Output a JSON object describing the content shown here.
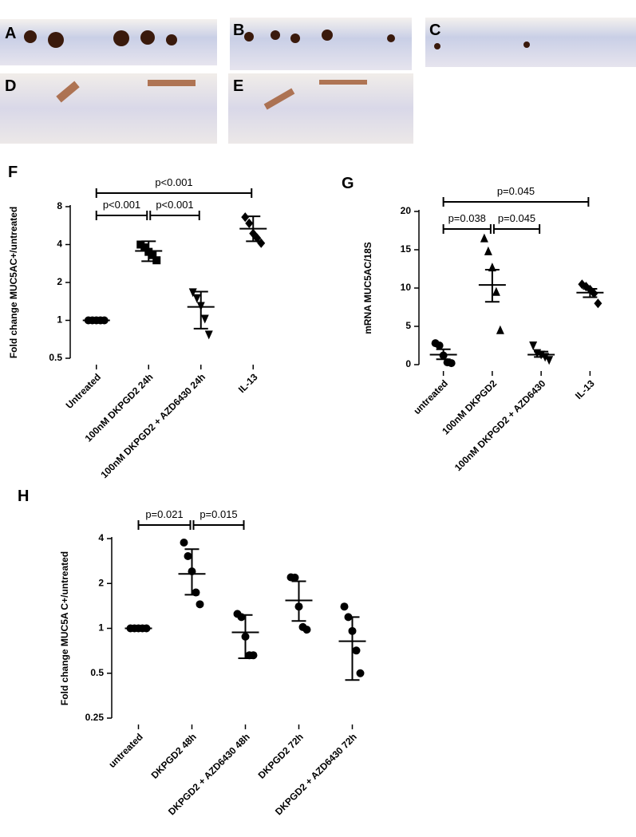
{
  "panels": [
    {
      "label": "A"
    },
    {
      "label": "B"
    },
    {
      "label": "C"
    },
    {
      "label": "D"
    },
    {
      "label": "E"
    }
  ],
  "chart_data": [
    {
      "type": "dotplot",
      "panel": "F",
      "ylabel": "Fold change MUC5AC+/untreated",
      "log_scale": true,
      "categories": [
        "Untreated",
        "100nM DKPGD2 24h",
        "100nM DKPGD2 + AZD6430 24h",
        "IL-13"
      ],
      "markers": [
        "circle",
        "square",
        "triangle-down",
        "diamond"
      ],
      "color": "#000000",
      "points": [
        [
          1,
          1,
          1,
          1,
          1
        ],
        [
          4.0,
          3.8,
          3.5,
          3.3,
          3.0
        ],
        [
          1.67,
          1.5,
          1.3,
          1.03,
          0.77
        ],
        [
          6.6,
          5.9,
          4.9,
          4.5,
          4.1
        ]
      ],
      "mean": [
        1,
        3.56,
        1.28,
        5.35
      ],
      "lower": [
        1,
        2.95,
        0.86,
        4.25
      ],
      "upper": [
        1,
        4.25,
        1.69,
        6.7
      ],
      "ylim": [
        0.5,
        8
      ],
      "yticks": [
        0.5,
        1,
        2,
        4,
        8
      ],
      "comparisons": [
        {
          "from": 0,
          "to": 3,
          "label": "p<0.001"
        },
        {
          "from": 0,
          "to": 1,
          "label": "p<0.001"
        },
        {
          "from": 1,
          "to": 2,
          "label": "p<0.001"
        }
      ]
    },
    {
      "type": "dotplot",
      "panel": "G",
      "ylabel": "mRNA MUC5AC/18S",
      "log_scale": false,
      "categories": [
        "untreated",
        "100nM DKPGD2",
        "100nM DKPGD2 + AZD6430",
        "IL-13"
      ],
      "markers": [
        "circle",
        "triangle-up",
        "triangle-down",
        "diamond"
      ],
      "color": "#000000",
      "points": [
        [
          2.8,
          2.5,
          1.2,
          0.3,
          0.2
        ],
        [
          16.5,
          14.8,
          12.7,
          9.5,
          4.5
        ],
        [
          2.5,
          1.5,
          1.3,
          1.0,
          0.6
        ],
        [
          10.5,
          10.2,
          9.8,
          9.3,
          8.0
        ]
      ],
      "mean": [
        1.3,
        10.4,
        1.3,
        9.4
      ],
      "lower": [
        0.7,
        8.2,
        1.0,
        8.8
      ],
      "upper": [
        2.0,
        12.4,
        1.7,
        9.9
      ],
      "ylim": [
        0,
        20
      ],
      "yticks": [
        0,
        5,
        10,
        15,
        20
      ],
      "comparisons": [
        {
          "from": 0,
          "to": 3,
          "label": "p=0.045"
        },
        {
          "from": 0,
          "to": 1,
          "label": "p=0.038"
        },
        {
          "from": 1,
          "to": 2,
          "label": "p=0.045"
        }
      ]
    },
    {
      "type": "dotplot",
      "panel": "H",
      "ylabel": "Fold change MUC5A C+/untreated",
      "log_scale": true,
      "categories": [
        "untreated",
        "DKPGD2 48h",
        "DKPGD2 + AZD6430 48h",
        "DKPGD2 72h",
        "DKPGD2 + AZD6430 72h"
      ],
      "markers": [
        "circle",
        "circle",
        "circle",
        "circle",
        "circle"
      ],
      "color": "#000000",
      "points": [
        [
          1,
          1,
          1,
          1,
          1
        ],
        [
          3.76,
          3.05,
          2.41,
          1.74,
          1.45
        ],
        [
          1.25,
          1.19,
          0.88,
          0.66,
          0.66
        ],
        [
          2.2,
          2.19,
          1.4,
          1.02,
          0.98
        ],
        [
          1.4,
          1.19,
          0.96,
          0.71,
          0.5
        ]
      ],
      "mean": [
        1,
        2.32,
        0.94,
        1.54,
        0.82
      ],
      "lower": [
        1,
        1.68,
        0.63,
        1.12,
        0.45
      ],
      "upper": [
        1,
        3.4,
        1.23,
        2.07,
        1.19
      ],
      "ylim": [
        0.25,
        4
      ],
      "yticks": [
        0.25,
        0.5,
        1,
        2,
        4
      ],
      "comparisons": [
        {
          "from": 0,
          "to": 1,
          "label": "p=0.021"
        },
        {
          "from": 1,
          "to": 2,
          "label": "p=0.015"
        }
      ]
    }
  ]
}
